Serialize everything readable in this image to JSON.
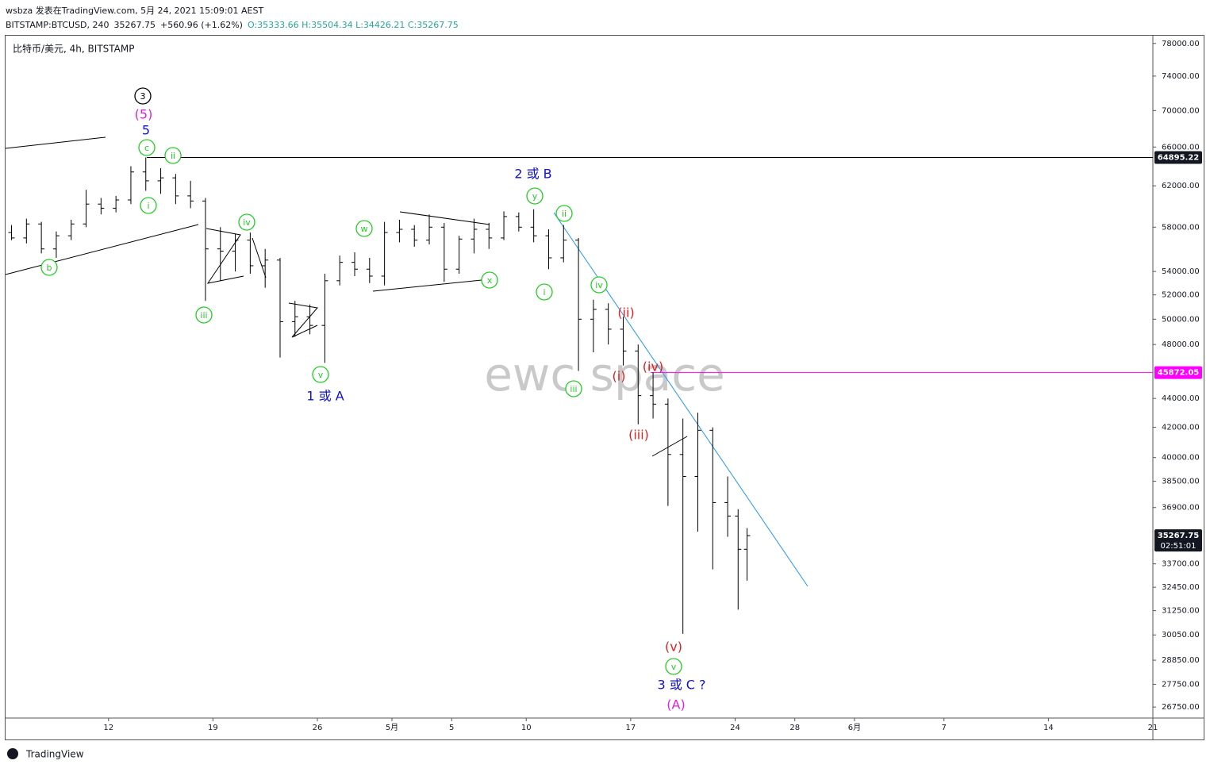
{
  "header": {
    "line1": "wsbza 发表在TradingView.com, 5月 24, 2021 15:09:01 AEST",
    "symbol": "BITSTAMP:BTCUSD, 240",
    "last": "35267.75",
    "change": "+560.96 (+1.62%)",
    "ohlc": "O:35333.66 H:35504.34 L:34426.21 C:35267.75"
  },
  "footer": {
    "brand": "TradingView"
  },
  "chart_data": {
    "type": "ohlc",
    "title": "比特币/美元, 4h, BITSTAMP",
    "watermark": "ewc space",
    "log_scale": true,
    "color": "#000000",
    "x": [
      4.5,
      5.5,
      6.5,
      7.5,
      8.5,
      9.5,
      10.5,
      11.5,
      12.5,
      13.5,
      14.5,
      15.5,
      16.5,
      17.5,
      18.5,
      19.5,
      20.5,
      21.5,
      22.5,
      23.5,
      24.5,
      25.5,
      26.5,
      27.5,
      28.5,
      29.5,
      30.5,
      31.5,
      32.5,
      33.5,
      34.5,
      35.5,
      36.5,
      37.5,
      38.5,
      39.5,
      40.5,
      41.5,
      42.5,
      43.5,
      44.5,
      45.5,
      46.5,
      47.5,
      48.5,
      49.5,
      50.5,
      51.5,
      52.5,
      53.2,
      53.8
    ],
    "open": [
      57500,
      57000,
      58300,
      56000,
      57200,
      58300,
      60200,
      59800,
      60600,
      63400,
      62500,
      62800,
      61000,
      60500,
      56000,
      55800,
      56800,
      54500,
      55000,
      49800,
      50200,
      49500,
      53200,
      54800,
      54200,
      53600,
      57500,
      57800,
      56800,
      58000,
      54200,
      56900,
      57800,
      57000,
      59000,
      58000,
      57200,
      55200,
      56800,
      50000,
      50800,
      49200,
      47500,
      44200,
      43600,
      40200,
      38800,
      41800,
      37200,
      36400,
      34500
    ],
    "high": [
      58200,
      58800,
      58500,
      57600,
      58700,
      61600,
      60800,
      61000,
      64000,
      64900,
      63800,
      63200,
      62500,
      60800,
      58000,
      57400,
      57500,
      56000,
      55200,
      51500,
      51200,
      53800,
      55400,
      55700,
      55200,
      58500,
      58700,
      58200,
      59200,
      58400,
      57200,
      58800,
      58400,
      59500,
      59400,
      59700,
      57800,
      58200,
      57000,
      51600,
      51300,
      50200,
      48000,
      45900,
      44000,
      42600,
      43000,
      42000,
      38800,
      36800,
      35700
    ],
    "low": [
      56800,
      56500,
      55600,
      55200,
      56800,
      58000,
      59200,
      59400,
      60200,
      61500,
      61200,
      60200,
      59800,
      51500,
      53200,
      54000,
      53800,
      52600,
      47000,
      48600,
      48800,
      46600,
      52800,
      53600,
      53000,
      52800,
      56600,
      56200,
      56400,
      53100,
      53800,
      55600,
      56000,
      56800,
      57600,
      56600,
      54200,
      54800,
      46000,
      47400,
      48000,
      46400,
      42200,
      42600,
      37000,
      30100,
      35500,
      33400,
      35200,
      31300,
      32800
    ],
    "close": [
      57000,
      58300,
      56000,
      57200,
      58300,
      60200,
      59800,
      60600,
      63400,
      62500,
      62800,
      61000,
      60500,
      56000,
      55800,
      56800,
      54500,
      55000,
      49800,
      50200,
      49500,
      53200,
      54800,
      54200,
      53600,
      57500,
      57800,
      56800,
      58000,
      54200,
      56900,
      57800,
      57000,
      59000,
      58000,
      57200,
      55200,
      56800,
      50000,
      50800,
      49200,
      47500,
      44200,
      43600,
      40200,
      38800,
      41800,
      37200,
      36400,
      34500,
      35267.75
    ],
    "xlim": [
      4.1,
      81
    ],
    "xticks": [
      {
        "value": 11,
        "label": "12"
      },
      {
        "value": 18,
        "label": "19"
      },
      {
        "value": 25,
        "label": "26"
      },
      {
        "value": 30,
        "label": "5月"
      },
      {
        "value": 34,
        "label": "5"
      },
      {
        "value": 39,
        "label": "10"
      },
      {
        "value": 46,
        "label": "17"
      },
      {
        "value": 53,
        "label": "24"
      },
      {
        "value": 57,
        "label": "28"
      },
      {
        "value": 61,
        "label": "6月"
      },
      {
        "value": 67,
        "label": "7"
      },
      {
        "value": 74,
        "label": "14"
      },
      {
        "value": 81,
        "label": "21"
      }
    ],
    "ylim": [
      26280,
      78980
    ],
    "yticks": [
      {
        "value": 78000,
        "label": "78000.00"
      },
      {
        "value": 74000,
        "label": "74000.00"
      },
      {
        "value": 70000,
        "label": "70000.00"
      },
      {
        "value": 66000,
        "label": "66000.00"
      },
      {
        "value": 62000,
        "label": "62000.00"
      },
      {
        "value": 58000,
        "label": "58000.00"
      },
      {
        "value": 54000,
        "label": "54000.00"
      },
      {
        "value": 52000,
        "label": "52000.00"
      },
      {
        "value": 50000,
        "label": "50000.00"
      },
      {
        "value": 48000,
        "label": "48000.00"
      },
      {
        "value": 44000,
        "label": "44000.00"
      },
      {
        "value": 42000,
        "label": "42000.00"
      },
      {
        "value": 40000,
        "label": "40000.00"
      },
      {
        "value": 38500,
        "label": "38500.00"
      },
      {
        "value": 36900,
        "label": "36900.00"
      },
      {
        "value": 33700,
        "label": "33700.00"
      },
      {
        "value": 32450,
        "label": "32450.00"
      },
      {
        "value": 31250,
        "label": "31250.00"
      },
      {
        "value": 30050,
        "label": "30050.00"
      },
      {
        "value": 28850,
        "label": "28850.00"
      },
      {
        "value": 27750,
        "label": "27750.00"
      },
      {
        "value": 26750,
        "label": "26750.00"
      }
    ],
    "levels": [
      {
        "value": 64895.22,
        "label": "64895.22",
        "color": "#000000"
      },
      {
        "value": 45872.05,
        "label": "45872.05",
        "color": "#ff00ff"
      }
    ],
    "last_price": {
      "value": 35267.75,
      "label": "35267.75",
      "countdown": "02:51:01"
    },
    "annotations": [
      {
        "text": "3",
        "color": "#000000",
        "circled": true
      },
      {
        "text": "(5)",
        "color": "#e020e0",
        "circled": false
      },
      {
        "text": "5",
        "color": "#1010d0",
        "circled": false
      },
      {
        "text": "c",
        "color": "#22cc22",
        "circled": true
      },
      {
        "text": "ii",
        "color": "#22cc22",
        "circled": true
      },
      {
        "text": "i",
        "color": "#22cc22",
        "circled": true
      },
      {
        "text": "b",
        "color": "#22cc22",
        "circled": true
      },
      {
        "text": "iv",
        "color": "#22cc22",
        "circled": true
      },
      {
        "text": "iii",
        "color": "#22cc22",
        "circled": true
      },
      {
        "text": "v",
        "color": "#22cc22",
        "circled": true
      },
      {
        "text": "1 或 A",
        "color": "#1010d0",
        "circled": false
      },
      {
        "text": "w",
        "color": "#22cc22",
        "circled": true
      },
      {
        "text": "x",
        "color": "#22cc22",
        "circled": true
      },
      {
        "text": "2 或 B",
        "color": "#1010d0",
        "circled": false
      },
      {
        "text": "y",
        "color": "#22cc22",
        "circled": true
      },
      {
        "text": "ii",
        "color": "#22cc22",
        "circled": true
      },
      {
        "text": "i",
        "color": "#22cc22",
        "circled": true
      },
      {
        "text": "iv",
        "color": "#22cc22",
        "circled": true
      },
      {
        "text": "(ii)",
        "color": "#e02020",
        "circled": false
      },
      {
        "text": "(i)",
        "color": "#e02020",
        "circled": false
      },
      {
        "text": "iii",
        "color": "#22cc22",
        "circled": true
      },
      {
        "text": "(iv)",
        "color": "#e02020",
        "circled": false
      },
      {
        "text": "(iii)",
        "color": "#e02020",
        "circled": false
      },
      {
        "text": "(v)",
        "color": "#e02020",
        "circled": false
      },
      {
        "text": "v",
        "color": "#22cc22",
        "circled": true
      },
      {
        "text": "3 或 C ?",
        "color": "#1010d0",
        "circled": false
      },
      {
        "text": "(A)",
        "color": "#e020e0",
        "circled": false
      }
    ]
  }
}
